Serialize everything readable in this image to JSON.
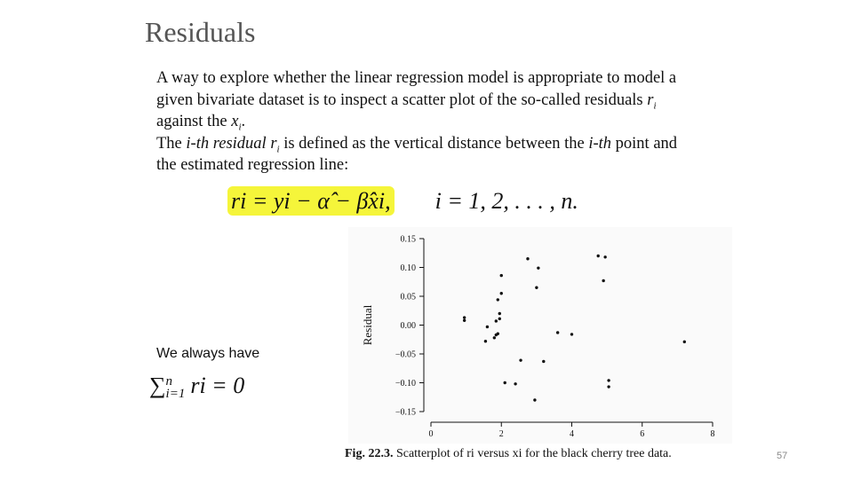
{
  "slide": {
    "title": "Residuals",
    "paragraph1": {
      "part1": "A way to explore whether the linear regression model is appropriate to model a given bivariate dataset is to inspect a scatter plot of the so-called residuals ",
      "r": "r",
      "r_sub": "i",
      "part2": " against the ",
      "x": "x",
      "x_sub": "i",
      "part3": "."
    },
    "paragraph2": {
      "part1": "The ",
      "ith1": "i-th",
      "space": " ",
      "residual": "residual",
      "space2": " ",
      "r": "r",
      "r_sub": "i",
      "part2": " is defined as the vertical distance between the ",
      "ith2": "i-th",
      "part3": " point and the estimated regression line:"
    },
    "formula": {
      "lhs": "ri = yi − α̂ − β̂xi,",
      "index_range": "i = 1, 2, . . . , n."
    },
    "note": "We always have",
    "sum_formula": {
      "upper": "n",
      "lower": "i=1",
      "body": "ri = 0"
    },
    "caption": {
      "label": "Fig. 22.3.",
      "text": " Scatterplot of ri versus xi for the black cherry tree data."
    },
    "page_number": "57"
  },
  "chart_data": {
    "type": "scatter",
    "title": "",
    "xlabel": "",
    "ylabel": "Residual",
    "xlim": [
      0,
      8
    ],
    "ylim": [
      -0.15,
      0.15
    ],
    "x_ticks": [
      "0",
      "2",
      "4",
      "6",
      "8"
    ],
    "y_ticks": [
      "0.15",
      "0.10",
      "0.05",
      "0.00",
      "−0.05",
      "−0.10",
      "−0.15"
    ],
    "grid": false,
    "series": [
      {
        "name": "",
        "x": [
          0.95,
          0.95,
          1.55,
          1.6,
          1.8,
          1.85,
          1.85,
          1.9,
          1.9,
          1.95,
          1.95,
          2.0,
          2.0,
          2.1,
          2.4,
          2.55,
          2.75,
          2.95,
          3.0,
          3.05,
          3.2,
          3.6,
          4.0,
          4.75,
          4.95,
          4.9,
          5.05,
          5.05,
          7.2
        ],
        "y": [
          0.013,
          0.008,
          -0.028,
          -0.003,
          -0.022,
          -0.017,
          0.007,
          0.044,
          -0.015,
          0.011,
          0.02,
          0.055,
          0.086,
          -0.1,
          -0.102,
          -0.061,
          0.115,
          -0.13,
          0.065,
          0.099,
          -0.063,
          -0.013,
          -0.016,
          0.12,
          0.118,
          0.077,
          -0.096,
          -0.107,
          -0.029
        ]
      }
    ]
  }
}
